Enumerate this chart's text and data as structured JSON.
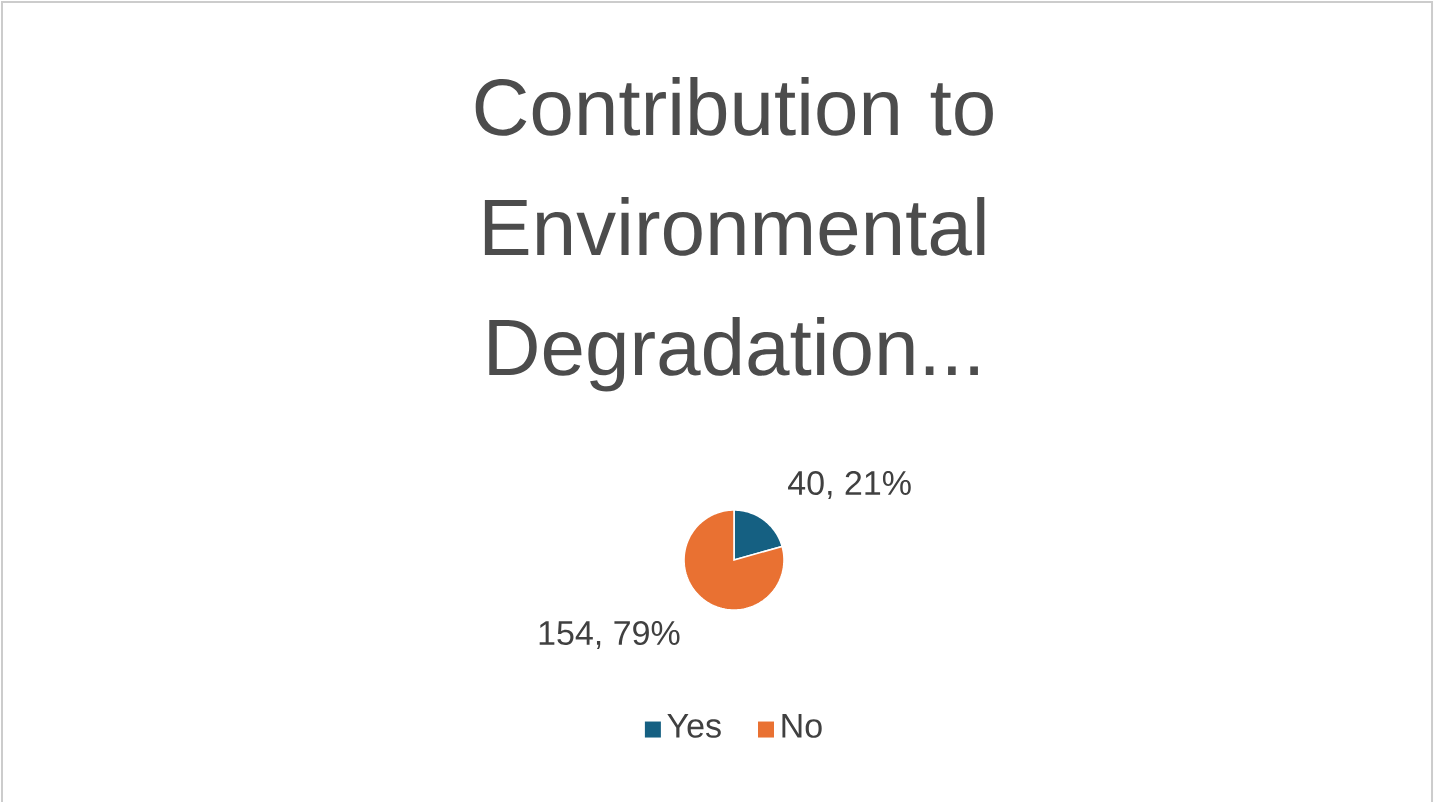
{
  "chart_data": {
    "type": "pie",
    "title": "Contribution to Environmental Degradation...",
    "categories": [
      "Yes",
      "No"
    ],
    "values": [
      40,
      154
    ],
    "colors": [
      "#156082",
      "#e97132"
    ],
    "value_labels": [
      "40, 21%",
      "154, 79%"
    ],
    "legend": "bottom"
  }
}
